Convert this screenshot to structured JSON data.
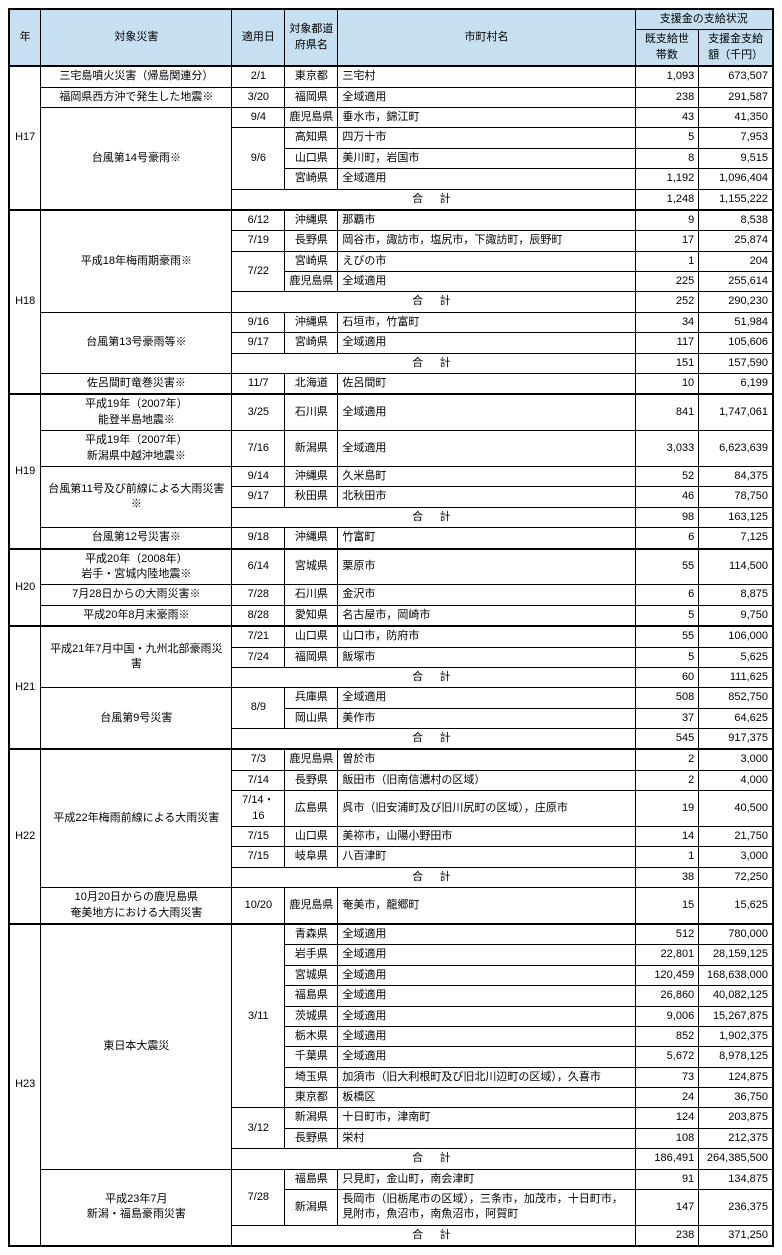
{
  "header": {
    "year": "年",
    "disaster": "対象災害",
    "date": "適用日",
    "pref": "対象都道府県名",
    "muni": "市町村名",
    "status_group": "支援金の支給状況",
    "households": "既支給世帯数",
    "amount": "支援金支給額（千円）"
  },
  "goukei": "合計",
  "years": {
    "h17": "H17",
    "h18": "H18",
    "h19": "H19",
    "h20": "H20",
    "h21": "H21",
    "h22": "H22",
    "h23": "H23"
  },
  "rows": [
    {
      "disaster": "三宅島噴火災害（帰島関連分）",
      "date": "2/1",
      "pref": "東京都",
      "muni": "三宅村",
      "hh": "1,093",
      "amt": "673,507"
    },
    {
      "disaster": "福岡県西方沖で発生した地震※",
      "date": "3/20",
      "pref": "福岡県",
      "muni": "全域適用",
      "hh": "238",
      "amt": "291,587"
    },
    {
      "date": "9/4",
      "pref": "鹿児島県",
      "muni": "垂水市，錦江町",
      "hh": "43",
      "amt": "41,350"
    },
    {
      "date": "9/6",
      "pref": "高知県",
      "muni": "四万十市",
      "hh": "5",
      "amt": "7,953"
    },
    {
      "pref": "山口県",
      "muni": "美川町，岩国市",
      "hh": "8",
      "amt": "9,515"
    },
    {
      "pref": "宮崎県",
      "muni": "全域適用",
      "hh": "1,192",
      "amt": "1,096,404"
    },
    {
      "subtotal": true,
      "hh": "1,248",
      "amt": "1,155,222"
    },
    {
      "date": "6/12",
      "pref": "沖縄県",
      "muni": "那覇市",
      "hh": "9",
      "amt": "8,538"
    },
    {
      "date": "7/19",
      "pref": "長野県",
      "muni": "岡谷市，諏訪市，塩尻市，下諏訪町，辰野町",
      "hh": "17",
      "amt": "25,874"
    },
    {
      "date": "7/22",
      "pref": "宮崎県",
      "muni": "えびの市",
      "hh": "1",
      "amt": "204"
    },
    {
      "pref": "鹿児島県",
      "muni": "全域適用",
      "hh": "225",
      "amt": "255,614"
    },
    {
      "subtotal": true,
      "hh": "252",
      "amt": "290,230"
    },
    {
      "date": "9/16",
      "pref": "沖縄県",
      "muni": "石垣市，竹富町",
      "hh": "34",
      "amt": "51,984"
    },
    {
      "date": "9/17",
      "pref": "宮崎県",
      "muni": "全域適用",
      "hh": "117",
      "amt": "105,606"
    },
    {
      "subtotal": true,
      "hh": "151",
      "amt": "157,590"
    },
    {
      "disaster": "佐呂間町竜巻災害※",
      "date": "11/7",
      "pref": "北海道",
      "muni": "佐呂間町",
      "hh": "10",
      "amt": "6,199"
    },
    {
      "disaster": "平成19年（2007年）\n能登半島地震※",
      "date": "3/25",
      "pref": "石川県",
      "muni": "全域適用",
      "hh": "841",
      "amt": "1,747,061"
    },
    {
      "disaster": "平成19年（2007年）\n新潟県中越沖地震※",
      "date": "7/16",
      "pref": "新潟県",
      "muni": "全域適用",
      "hh": "3,033",
      "amt": "6,623,639"
    },
    {
      "date": "9/14",
      "pref": "沖縄県",
      "muni": "久米島町",
      "hh": "52",
      "amt": "84,375"
    },
    {
      "date": "9/17",
      "pref": "秋田県",
      "muni": "北秋田市",
      "hh": "46",
      "amt": "78,750"
    },
    {
      "subtotal": true,
      "hh": "98",
      "amt": "163,125"
    },
    {
      "disaster": "台風第12号災害※",
      "date": "9/18",
      "pref": "沖縄県",
      "muni": "竹富町",
      "hh": "6",
      "amt": "7,125"
    },
    {
      "disaster": "平成20年（2008年）\n岩手・宮城内陸地震※",
      "date": "6/14",
      "pref": "宮城県",
      "muni": "栗原市",
      "hh": "55",
      "amt": "114,500"
    },
    {
      "disaster": "7月28日からの大雨災害※",
      "date": "7/28",
      "pref": "石川県",
      "muni": "金沢市",
      "hh": "6",
      "amt": "8,875"
    },
    {
      "disaster": "平成20年8月末豪雨※",
      "date": "8/28",
      "pref": "愛知県",
      "muni": "名古屋市，岡崎市",
      "hh": "5",
      "amt": "9,750"
    },
    {
      "date": "7/21",
      "pref": "山口県",
      "muni": "山口市，防府市",
      "hh": "55",
      "amt": "106,000"
    },
    {
      "date": "7/24",
      "pref": "福岡県",
      "muni": "飯塚市",
      "hh": "5",
      "amt": "5,625"
    },
    {
      "subtotal": true,
      "hh": "60",
      "amt": "111,625"
    },
    {
      "date": "8/9",
      "pref": "兵庫県",
      "muni": "全域適用",
      "hh": "508",
      "amt": "852,750"
    },
    {
      "pref": "岡山県",
      "muni": "美作市",
      "hh": "37",
      "amt": "64,625"
    },
    {
      "subtotal": true,
      "hh": "545",
      "amt": "917,375"
    },
    {
      "date": "7/3",
      "pref": "鹿児島県",
      "muni": "曽於市",
      "hh": "2",
      "amt": "3,000"
    },
    {
      "date": "7/14",
      "pref": "長野県",
      "muni": "飯田市（旧南信濃村の区域）",
      "hh": "2",
      "amt": "4,000"
    },
    {
      "date": "7/14・16",
      "pref": "広島県",
      "muni": "呉市（旧安浦町及び旧川尻町の区域），庄原市",
      "hh": "19",
      "amt": "40,500"
    },
    {
      "date": "7/15",
      "pref": "山口県",
      "muni": "美祢市，山陽小野田市",
      "hh": "14",
      "amt": "21,750"
    },
    {
      "date": "7/15",
      "pref": "岐阜県",
      "muni": "八百津町",
      "hh": "1",
      "amt": "3,000"
    },
    {
      "subtotal": true,
      "hh": "38",
      "amt": "72,250"
    },
    {
      "disaster": "10月20日からの鹿児島県\n奄美地方における大雨災害",
      "date": "10/20",
      "pref": "鹿児島県",
      "muni": "奄美市，龍郷町",
      "hh": "15",
      "amt": "15,625"
    },
    {
      "date": "3/11",
      "pref": "青森県",
      "muni": "全域適用",
      "hh": "512",
      "amt": "780,000"
    },
    {
      "pref": "岩手県",
      "muni": "全域適用",
      "hh": "22,801",
      "amt": "28,159,125"
    },
    {
      "pref": "宮城県",
      "muni": "全域適用",
      "hh": "120,459",
      "amt": "168,638,000"
    },
    {
      "pref": "福島県",
      "muni": "全域適用",
      "hh": "26,860",
      "amt": "40,082,125"
    },
    {
      "pref": "茨城県",
      "muni": "全域適用",
      "hh": "9,006",
      "amt": "15,267,875"
    },
    {
      "pref": "栃木県",
      "muni": "全域適用",
      "hh": "852",
      "amt": "1,902,375"
    },
    {
      "pref": "千葉県",
      "muni": "全域適用",
      "hh": "5,672",
      "amt": "8,978,125"
    },
    {
      "pref": "埼玉県",
      "muni": "加須市（旧大利根町及び旧北川辺町の区域），久喜市",
      "hh": "73",
      "amt": "124,875"
    },
    {
      "pref": "東京都",
      "muni": "板橋区",
      "hh": "24",
      "amt": "36,750"
    },
    {
      "date": "3/12",
      "pref": "新潟県",
      "muni": "十日町市，津南町",
      "hh": "124",
      "amt": "203,875"
    },
    {
      "pref": "長野県",
      "muni": "栄村",
      "hh": "108",
      "amt": "212,375"
    },
    {
      "subtotal": true,
      "hh": "186,491",
      "amt": "264,385,500"
    },
    {
      "date": "7/28",
      "pref": "福島県",
      "muni": "只見町，金山町，南会津町",
      "hh": "91",
      "amt": "134,875"
    },
    {
      "pref": "新潟県",
      "muni": "長岡市（旧栃尾市の区域），三条市，加茂市，十日町市，見附市，魚沼市，南魚沼市，阿賀町",
      "hh": "147",
      "amt": "236,375"
    },
    {
      "subtotal": true,
      "hh": "238",
      "amt": "371,250"
    }
  ],
  "disaster_names": {
    "t14": "台風第14号豪雨※",
    "h18tsuyu": "平成18年梅雨期豪雨※",
    "t13": "台風第13号豪雨等※",
    "t11front": "台風第11号及び前線による大雨災害※",
    "h21cn": "平成21年7月中国・九州北部豪雨災害",
    "t9": "台風第9号災害",
    "h22tsuyu": "平成22年梅雨前線による大雨災害",
    "higashi": "東日本大震災",
    "h23niigata": "平成23年7月\n新潟・福島豪雨災害"
  }
}
